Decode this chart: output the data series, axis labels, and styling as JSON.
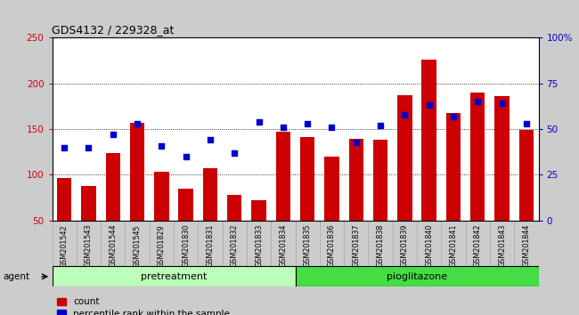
{
  "title": "GDS4132 / 229328_at",
  "categories": [
    "GSM201542",
    "GSM201543",
    "GSM201544",
    "GSM201545",
    "GSM201829",
    "GSM201830",
    "GSM201831",
    "GSM201832",
    "GSM201833",
    "GSM201834",
    "GSM201835",
    "GSM201836",
    "GSM201837",
    "GSM201838",
    "GSM201839",
    "GSM201840",
    "GSM201841",
    "GSM201842",
    "GSM201843",
    "GSM201844"
  ],
  "bar_values": [
    97,
    88,
    124,
    157,
    103,
    85,
    107,
    78,
    72,
    147,
    141,
    120,
    139,
    138,
    187,
    226,
    168,
    190,
    186,
    149
  ],
  "dot_values": [
    40,
    40,
    47,
    53,
    41,
    35,
    44,
    37,
    54,
    51,
    53,
    51,
    43,
    52,
    58,
    63,
    57,
    65,
    64,
    53
  ],
  "bar_color": "#cc0000",
  "dot_color": "#0000cc",
  "group1_label": "pretreatment",
  "group1_count": 10,
  "group2_label": "pioglitazone",
  "group1_color": "#bbffbb",
  "group2_color": "#44dd44",
  "agent_label": "agent",
  "ylim_left": [
    50,
    250
  ],
  "ylim_right": [
    0,
    100
  ],
  "yticks_left": [
    50,
    100,
    150,
    200,
    250
  ],
  "yticks_right": [
    0,
    25,
    50,
    75,
    100
  ],
  "ytick_labels_right": [
    "0",
    "25",
    "50",
    "75",
    "100%"
  ],
  "legend_count": "count",
  "legend_pct": "percentile rank within the sample",
  "bg_color": "#cccccc",
  "plot_bg": "#ffffff",
  "tick_label_bg": "#cccccc",
  "tick_label_edge": "#aaaaaa"
}
